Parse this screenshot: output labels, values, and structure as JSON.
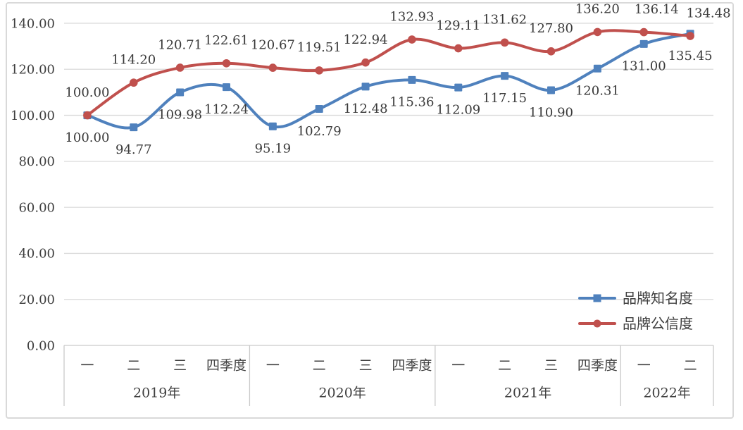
{
  "chart_data": {
    "type": "line",
    "smoothed": true,
    "data_labels": true,
    "label_decimals": 2,
    "categories": [
      "一",
      "二",
      "三",
      "四季度",
      "一",
      "二",
      "三",
      "四季度",
      "一",
      "二",
      "三",
      "四季度",
      "一",
      "二"
    ],
    "year_groups": [
      {
        "label": "2019年",
        "quarters": 4
      },
      {
        "label": "2020年",
        "quarters": 4
      },
      {
        "label": "2021年",
        "quarters": 4
      },
      {
        "label": "2022年",
        "quarters": 2
      }
    ],
    "series": [
      {
        "name": "品牌知名度",
        "marker": "square",
        "color": "#4F81BD",
        "label_side": "below",
        "values": [
          100.0,
          94.77,
          109.98,
          112.24,
          95.19,
          102.79,
          112.48,
          115.36,
          112.09,
          117.15,
          110.9,
          120.31,
          131.0,
          135.45
        ]
      },
      {
        "name": "品牌公信度",
        "marker": "circle",
        "color": "#C0504D",
        "label_side": "above",
        "values": [
          100.0,
          114.2,
          120.71,
          122.61,
          120.67,
          119.51,
          122.94,
          132.93,
          129.11,
          131.62,
          127.8,
          136.2,
          136.14,
          134.48
        ]
      }
    ],
    "ylim": [
      0,
      140
    ],
    "y_tick_step": 20,
    "y_tick_labels": [
      "0.00",
      "20.00",
      "40.00",
      "60.00",
      "80.00",
      "100.00",
      "120.00",
      "140.00"
    ],
    "grid": true,
    "legend_position": "right-middle",
    "colors": {
      "grid": "#D9D9D9",
      "axis_border": "#C9C9C9",
      "text": "#3F3F3F",
      "frame_border": "#D9D9D9",
      "background": "#FFFFFF"
    }
  }
}
